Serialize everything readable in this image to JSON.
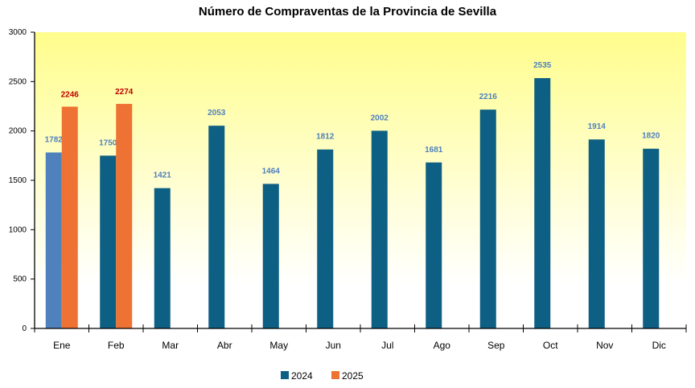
{
  "chart_data": {
    "type": "bar",
    "title": "Número de Compraventas de la Provincia de Sevilla",
    "categories": [
      "Ene",
      "Feb",
      "Mar",
      "Abr",
      "May",
      "Jun",
      "Jul",
      "Ago",
      "Sep",
      "Oct",
      "Nov",
      "Dic"
    ],
    "series": [
      {
        "name": "2024",
        "color": "#0e5f84",
        "highlight_color": "#4f81bd",
        "label_color": "#4f81bd",
        "values": [
          1782,
          1750,
          1421,
          2053,
          1464,
          1812,
          2002,
          1681,
          2216,
          2535,
          1914,
          1820
        ]
      },
      {
        "name": "2025",
        "color": "#ed7233",
        "label_color": "#c00000",
        "values": [
          2246,
          2274,
          null,
          null,
          null,
          null,
          null,
          null,
          null,
          null,
          null,
          null
        ]
      }
    ],
    "ylim": [
      0,
      3000
    ],
    "yticks": [
      0,
      500,
      1000,
      1500,
      2000,
      2500,
      3000
    ],
    "grid": false,
    "legend": "bottom",
    "background": "yellow-to-white gradient"
  }
}
